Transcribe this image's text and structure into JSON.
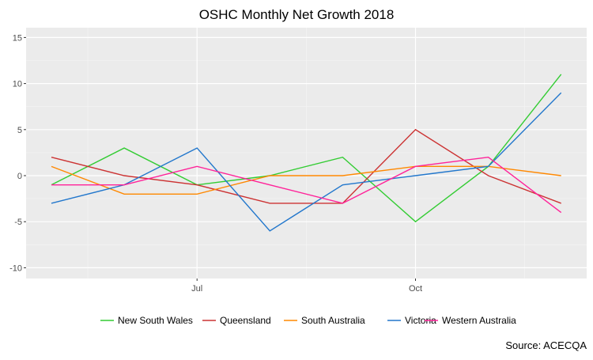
{
  "chart_data": {
    "type": "line",
    "title": "OSHC Monthly Net Growth 2018",
    "xlabel": "",
    "ylabel": "",
    "x": [
      "2018-05",
      "2018-06",
      "2018-07",
      "2018-08",
      "2018-09",
      "2018-10",
      "2018-11",
      "2018-12"
    ],
    "x_tick_labels": [
      "Jul",
      "Oct"
    ],
    "y_tick_labels": [
      "-10",
      "-5",
      "0",
      "5",
      "10",
      "15"
    ],
    "ylim": [
      -11.5,
      16
    ],
    "grid": true,
    "legend_position": "bottom",
    "series": [
      {
        "name": "New South Wales",
        "color": "#33cc33",
        "values": [
          -1,
          3,
          -1,
          0,
          2,
          -5,
          1,
          11
        ]
      },
      {
        "name": "Queensland",
        "color": "#cc3333",
        "values": [
          2,
          0,
          -1,
          -3,
          -3,
          5,
          0,
          -3
        ]
      },
      {
        "name": "South Australia",
        "color": "#ff8800",
        "values": [
          1,
          -2,
          -2,
          0,
          0,
          1,
          1,
          0
        ]
      },
      {
        "name": "Victoria",
        "color": "#2277cc",
        "values": [
          -3,
          -1,
          3,
          -6,
          -1,
          0,
          1,
          9
        ]
      },
      {
        "name": "Western Australia",
        "color": "#ff2299",
        "values": [
          -1,
          -1,
          1,
          -1,
          -3,
          1,
          2,
          -4
        ]
      }
    ],
    "caption": "Source: ACECQA"
  }
}
